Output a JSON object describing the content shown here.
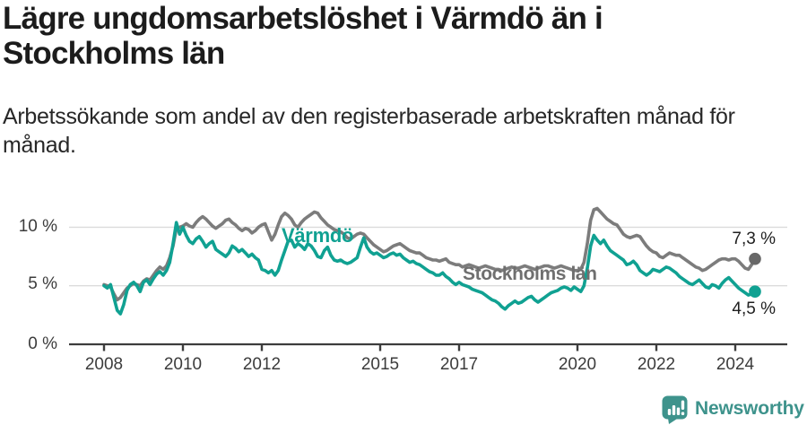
{
  "header": {
    "title": "Lägre ungdomsarbetslöshet i Värmdö än i\nStockholms län",
    "subtitle": "Arbetssökande som andel av den registerbaserade arbetskraften månad för\nmånad."
  },
  "chart_data": {
    "type": "line",
    "unit": "%",
    "x_start": 2008,
    "points_per_year": 12,
    "xlim": [
      2007.1,
      2025.3
    ],
    "ylim": [
      0,
      12.5
    ],
    "grid": true,
    "grid_color": "#dbdbdb",
    "axis_color": "#3d3d3d",
    "x_ticks": [
      2008,
      2010,
      2012,
      2015,
      2017,
      2020,
      2022,
      2024
    ],
    "x_tick_labels": [
      "2008",
      "2010",
      "2012",
      "2015",
      "2017",
      "2020",
      "2022",
      "2024"
    ],
    "y_ticks": [
      {
        "value": 10,
        "label": "10 %"
      },
      {
        "value": 5,
        "label": "5 %"
      },
      {
        "value": 0,
        "label": "0 %"
      }
    ],
    "series": [
      {
        "id": "stockholms-lan",
        "name": "Stockholms län",
        "color": "#7c7c7c",
        "dot_color": "#686868",
        "label_color": "#6f6f6f",
        "end_label": "7,3 %",
        "end_value": 7.3,
        "values": [
          5.1,
          5.0,
          4.9,
          4.3,
          3.8,
          4.0,
          4.4,
          4.8,
          5.0,
          5.2,
          5.1,
          5.0,
          5.4,
          5.6,
          5.5,
          5.9,
          6.3,
          6.6,
          6.4,
          6.7,
          7.4,
          8.4,
          9.9,
          10.0,
          10.1,
          10.3,
          10.1,
          10.0,
          10.4,
          10.7,
          10.9,
          10.7,
          10.4,
          10.1,
          9.9,
          10.1,
          10.3,
          10.6,
          10.7,
          10.4,
          10.2,
          9.9,
          9.7,
          9.9,
          9.8,
          9.5,
          9.7,
          10.0,
          10.2,
          10.3,
          9.6,
          8.9,
          9.4,
          10.2,
          10.9,
          11.2,
          11.0,
          10.7,
          10.2,
          10.0,
          10.4,
          10.7,
          10.9,
          11.1,
          11.3,
          11.2,
          10.8,
          10.5,
          10.2,
          10.0,
          9.8,
          9.7,
          9.6,
          9.4,
          9.1,
          9.0,
          9.2,
          9.4,
          9.5,
          9.4,
          9.1,
          8.8,
          8.5,
          8.3,
          8.1,
          7.9,
          8.0,
          8.2,
          8.4,
          8.5,
          8.6,
          8.4,
          8.2,
          8.0,
          7.9,
          7.8,
          7.8,
          7.6,
          7.4,
          7.3,
          7.2,
          7.2,
          7.1,
          7.2,
          7.3,
          7.0,
          6.9,
          6.8,
          6.8,
          6.6,
          6.7,
          6.8,
          6.7,
          6.6,
          6.5,
          6.6,
          6.7,
          6.6,
          6.5,
          6.4,
          6.4,
          6.3,
          6.4,
          6.5,
          6.6,
          6.5,
          6.5,
          6.6,
          6.7,
          6.6,
          6.5,
          6.4,
          6.5,
          6.6,
          6.7,
          6.7,
          6.6,
          6.5,
          6.6,
          6.7,
          6.6,
          6.5,
          6.4,
          6.3,
          6.3,
          6.4,
          7.0,
          8.6,
          10.6,
          11.5,
          11.6,
          11.3,
          11.0,
          10.7,
          10.5,
          10.3,
          10.2,
          9.8,
          9.4,
          9.2,
          9.1,
          9.2,
          9.3,
          9.2,
          8.8,
          8.4,
          8.1,
          7.9,
          7.8,
          7.5,
          7.4,
          7.6,
          7.8,
          7.7,
          7.6,
          7.6,
          7.4,
          7.2,
          7.0,
          6.8,
          6.6,
          6.5,
          6.3,
          6.4,
          6.6,
          6.8,
          7.0,
          7.2,
          7.3,
          7.3,
          7.2,
          7.3,
          7.3,
          7.1,
          6.8,
          6.5,
          6.4,
          6.8,
          7.3
        ]
      },
      {
        "id": "varmdo",
        "name": "Värmdö",
        "color": "#10a192",
        "dot_color": "#10a192",
        "label_color": "#10a192",
        "end_label": "4,5 %",
        "end_value": 4.5,
        "values": [
          5.0,
          4.8,
          5.1,
          4.0,
          2.9,
          2.6,
          3.4,
          4.6,
          5.1,
          5.3,
          5.0,
          4.5,
          5.3,
          5.5,
          5.1,
          5.6,
          6.0,
          6.2,
          5.9,
          6.3,
          7.0,
          8.6,
          10.4,
          9.4,
          10.0,
          9.3,
          8.8,
          8.6,
          9.0,
          9.2,
          8.8,
          8.3,
          8.6,
          8.8,
          8.1,
          7.9,
          7.7,
          7.5,
          7.8,
          8.4,
          8.2,
          7.9,
          8.1,
          7.8,
          7.5,
          7.7,
          7.4,
          7.2,
          6.4,
          6.3,
          6.1,
          6.3,
          5.9,
          6.3,
          7.2,
          8.0,
          8.8,
          8.9,
          8.3,
          8.6,
          8.4,
          8.1,
          8.6,
          8.4,
          8.0,
          7.5,
          7.4,
          8.0,
          8.3,
          7.6,
          7.2,
          7.1,
          7.2,
          7.0,
          6.9,
          7.0,
          7.2,
          7.4,
          8.3,
          9.1,
          8.3,
          7.9,
          7.7,
          7.8,
          7.6,
          7.4,
          7.5,
          7.7,
          7.8,
          7.6,
          7.7,
          7.4,
          7.2,
          7.0,
          7.1,
          6.9,
          6.8,
          6.6,
          6.4,
          6.2,
          6.1,
          5.9,
          5.9,
          6.1,
          5.8,
          5.6,
          5.3,
          5.1,
          5.3,
          5.1,
          5.0,
          4.9,
          4.7,
          4.6,
          4.5,
          4.4,
          4.2,
          4.0,
          3.8,
          3.7,
          3.5,
          3.2,
          3.0,
          3.3,
          3.5,
          3.7,
          3.5,
          3.6,
          3.8,
          4.0,
          4.1,
          3.8,
          3.6,
          3.8,
          4.0,
          4.2,
          4.4,
          4.5,
          4.6,
          4.8,
          4.9,
          4.8,
          4.6,
          4.9,
          4.7,
          4.5,
          5.0,
          6.5,
          8.4,
          9.3,
          8.9,
          8.6,
          8.9,
          8.4,
          8.0,
          7.8,
          7.6,
          7.4,
          7.2,
          6.8,
          6.9,
          7.1,
          6.8,
          6.3,
          6.1,
          5.9,
          6.1,
          6.4,
          6.3,
          6.2,
          6.4,
          6.6,
          6.5,
          6.3,
          6.1,
          5.8,
          5.6,
          5.4,
          5.2,
          5.1,
          5.3,
          5.5,
          5.2,
          4.9,
          4.8,
          5.1,
          5.0,
          4.8,
          5.2,
          5.5,
          5.7,
          5.4,
          5.1,
          4.8,
          4.6,
          4.4,
          4.2,
          4.3,
          4.5
        ]
      }
    ]
  },
  "footer": {
    "brand": "Newsworthy",
    "brand_color": "#3e938c"
  }
}
